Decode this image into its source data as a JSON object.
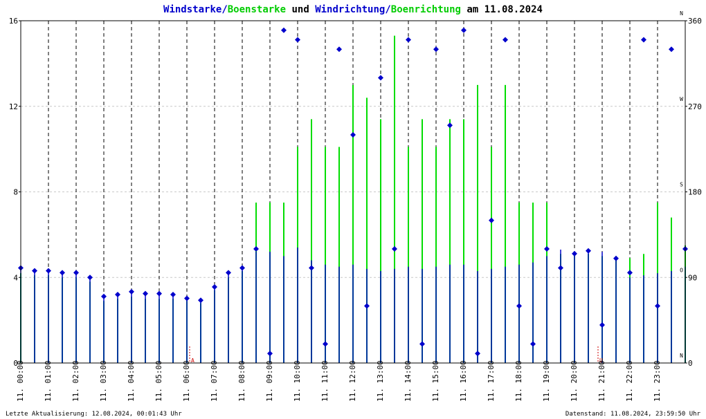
{
  "title_parts": [
    {
      "text": "Windstarke",
      "color": "#0000cc"
    },
    {
      "text": "/",
      "color": "#0000cc"
    },
    {
      "text": "Boenstarke",
      "color": "#00cc00"
    },
    {
      "text": " und ",
      "color": "#000000"
    },
    {
      "text": "Windrichtung",
      "color": "#0000cc"
    },
    {
      "text": "/",
      "color": "#0000cc"
    },
    {
      "text": "Boenrichtung",
      "color": "#00cc00"
    },
    {
      "text": " am 11.08.2024",
      "color": "#000000"
    }
  ],
  "footer": {
    "left": "Letzte Aktualisierung: 12.08.2024, 00:01:43 Uhr",
    "right": "Datenstand: 11.08.2024, 23:59:50 Uhr"
  },
  "colors": {
    "wind": "#0000cc",
    "gust": "#00dd00",
    "markers": "#cc0000"
  },
  "chart_data": {
    "type": "line",
    "x_unit": "hour of day",
    "xlim": [
      0,
      24
    ],
    "x_tick_labels": [
      "11. 00:00",
      "11. 01:00",
      "11. 02:00",
      "11. 03:00",
      "11. 04:00",
      "11. 05:00",
      "11. 06:00",
      "11. 07:00",
      "11. 08:00",
      "11. 09:00",
      "11. 10:00",
      "11. 11:00",
      "11. 12:00",
      "11. 13:00",
      "11. 14:00",
      "11. 15:00",
      "11. 16:00",
      "11. 17:00",
      "11. 18:00",
      "11. 19:00",
      "11. 20:00",
      "11. 21:00",
      "11. 22:00",
      "11. 23:00"
    ],
    "y_left": {
      "ylim": [
        0,
        16
      ],
      "ticks": [
        0,
        4,
        8,
        12,
        16
      ]
    },
    "y_right": {
      "ylim": [
        0,
        360
      ],
      "ticks": [
        0,
        90,
        180,
        270,
        360
      ],
      "compass": [
        {
          "value": 0,
          "label": "N"
        },
        {
          "value": 90,
          "label": "O"
        },
        {
          "value": 180,
          "label": "S"
        },
        {
          "value": 270,
          "label": "W"
        },
        {
          "value": 360,
          "label": "N"
        }
      ]
    },
    "hgrid": true,
    "vgrid": true,
    "markers": [
      {
        "x": 6.1,
        "label": "A"
      },
      {
        "x": 20.85,
        "label": "U"
      }
    ],
    "series": [
      {
        "name": "Windstarke",
        "color": "#0000cc",
        "x": [
          0,
          0.5,
          1,
          1.5,
          2,
          2.5,
          3,
          3.5,
          4,
          4.5,
          5,
          5.5,
          6,
          6.5,
          7,
          7.5,
          8,
          8.5,
          9,
          9.5,
          10,
          10.5,
          11,
          11.5,
          12,
          12.5,
          13,
          13.5,
          14,
          14.5,
          15,
          15.5,
          16,
          16.5,
          17,
          17.5,
          18,
          18.5,
          19,
          19.5,
          20,
          20.5,
          21,
          21.5,
          22,
          22.5,
          23,
          23.5,
          24
        ],
        "values": [
          4.4,
          4.3,
          4.3,
          4.2,
          4.2,
          4.0,
          3.0,
          3.1,
          3.3,
          3.2,
          3.2,
          3.2,
          3.0,
          2.9,
          3.6,
          4.2,
          4.5,
          5.2,
          5.2,
          5.0,
          5.4,
          4.8,
          4.6,
          4.5,
          4.6,
          4.4,
          4.3,
          4.4,
          4.5,
          4.4,
          4.5,
          4.6,
          4.6,
          4.3,
          4.4,
          4.5,
          4.6,
          4.7,
          5.0,
          5.3,
          5.2,
          5.3,
          5.2,
          4.8,
          4.0,
          4.1,
          4.2,
          4.3,
          4.5
        ]
      },
      {
        "name": "Boenstarke",
        "color": "#00dd00",
        "x": [
          0,
          0.5,
          1,
          1.5,
          2,
          2.5,
          3,
          3.5,
          4,
          4.5,
          5,
          5.5,
          6,
          6.5,
          7,
          7.5,
          8,
          8.5,
          9,
          9.5,
          10,
          10.5,
          11,
          11.5,
          12,
          12.5,
          13,
          13.5,
          14,
          14.5,
          15,
          15.5,
          16,
          16.5,
          17,
          17.5,
          18,
          18.5,
          19,
          19.5,
          20,
          20.5,
          21,
          21.5,
          22,
          22.5,
          23,
          23.5,
          24
        ],
        "values": [
          4.2,
          4.1,
          4.1,
          4.0,
          4.0,
          3.8,
          2.9,
          3.0,
          3.1,
          3.0,
          3.0,
          3.0,
          2.9,
          2.8,
          3.4,
          4.0,
          4.3,
          7.5,
          7.5,
          7.5,
          10.1,
          11.4,
          10.1,
          10.1,
          13.0,
          12.4,
          11.4,
          15.3,
          10.1,
          11.4,
          10.1,
          11.4,
          11.4,
          13.0,
          10.1,
          13.0,
          7.5,
          7.5,
          7.5,
          5.1,
          5.1,
          5.1,
          5.0,
          5.0,
          4.9,
          5.1,
          7.5,
          6.8,
          5.5
        ]
      },
      {
        "name": "Windrichtung",
        "color": "#0000cc",
        "x": [
          0,
          0.5,
          1,
          1.5,
          2,
          2.5,
          3,
          3.5,
          4,
          4.5,
          5,
          5.5,
          6,
          6.5,
          7,
          7.5,
          8,
          8.5,
          9,
          9.5,
          10,
          10.5,
          11,
          11.5,
          12,
          12.5,
          13,
          13.5,
          14,
          14.5,
          15,
          15.5,
          16,
          16.5,
          17,
          17.5,
          18,
          18.5,
          19,
          19.5,
          20,
          20.5,
          21,
          21.5,
          22,
          22.5,
          23,
          23.5,
          24
        ],
        "values": [
          100,
          97,
          97,
          95,
          95,
          90,
          70,
          72,
          75,
          73,
          73,
          72,
          68,
          66,
          80,
          95,
          100,
          120,
          10,
          350,
          340,
          100,
          20,
          330,
          240,
          60,
          300,
          120,
          340,
          20,
          330,
          250,
          350,
          10,
          150,
          340,
          60,
          20,
          120,
          100,
          115,
          118,
          40,
          110,
          95,
          340,
          60,
          330,
          120
        ]
      }
    ]
  }
}
